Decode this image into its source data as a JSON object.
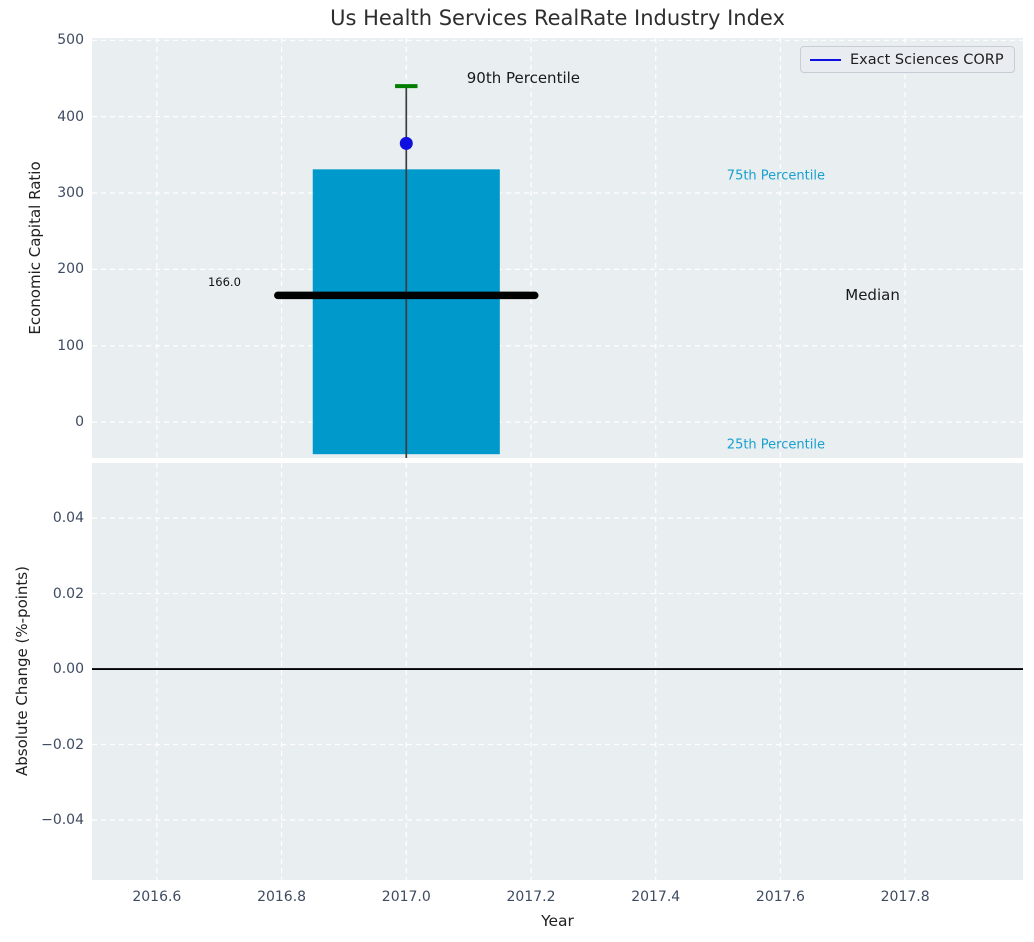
{
  "title": "Us Health Services RealRate Industry Index",
  "colors": {
    "axes_background": "#e9eef0",
    "grid": "#ffffff",
    "tick_text": "#3e4b61",
    "label_text": "#1f1f1f",
    "bar_fill": "#0099cc",
    "median_line": "#000000",
    "p90_cap": "#007d02",
    "whisker": "#3d3d3d",
    "company_blue": "#0f0fe0",
    "percentile_text": "#18a0d0",
    "zero_line": "#000000"
  },
  "legend": {
    "label": "Exact Sciences CORP",
    "line_color": "#0f0fe0"
  },
  "chart_data": [
    {
      "type": "box",
      "panel": "top",
      "ylabel": "Economic Capital Ratio",
      "xlim": [
        2016.496,
        2017.989
      ],
      "ylim": [
        -47,
        503
      ],
      "grid": true,
      "yticks": {
        "values": [
          0,
          100,
          200,
          300,
          400,
          500
        ],
        "labels": [
          "0",
          "100",
          "200",
          "300",
          "400",
          "500"
        ]
      },
      "xticks": {
        "values": [
          2016.6,
          2016.8,
          2017.0,
          2017.2,
          2017.4,
          2017.6,
          2017.8
        ],
        "labels": []
      },
      "box": {
        "x": 2017.0,
        "half_width": 0.15,
        "q25": -42,
        "q75": 331,
        "median": 166,
        "median_label": "166.0",
        "median_half_width": 0.206,
        "p90": 440,
        "p90_cap_half_width": 0.018,
        "whisker_low": -48
      },
      "company_point": {
        "x": 2017.0,
        "y": 365,
        "label": "Exact Sciences CORP"
      },
      "annotations": [
        {
          "text": "90th Percentile",
          "x": 2017.097,
          "y": 451,
          "size": 15,
          "color": "#1a1a1a"
        },
        {
          "text": "166.0",
          "x": 2016.682,
          "y": 183,
          "size": 11.5,
          "color": "#111111"
        },
        {
          "text": "Median",
          "x": 2017.704,
          "y": 167,
          "size": 15,
          "color": "#1a1a1a"
        },
        {
          "text": "75th Percentile",
          "x": 2017.514,
          "y": 322,
          "size": 13,
          "color": "#18a0d0"
        },
        {
          "text": "25th Percentile",
          "x": 2017.514,
          "y": -30,
          "size": 13,
          "color": "#18a0d0"
        }
      ]
    },
    {
      "type": "line",
      "panel": "bottom",
      "ylabel": "Absolute Change (%-points)",
      "xlabel": "Year",
      "xlim": [
        2016.496,
        2017.989
      ],
      "ylim": [
        -0.0559,
        0.0546
      ],
      "grid": true,
      "yticks": {
        "values": [
          0.04,
          0.02,
          0.0,
          -0.02,
          -0.04
        ],
        "labels": [
          "0.04",
          "0.02",
          "0.00",
          "−0.02",
          "−0.04"
        ]
      },
      "xticks": {
        "values": [
          2016.6,
          2016.8,
          2017.0,
          2017.2,
          2017.4,
          2017.6,
          2017.8
        ],
        "labels": [
          "2016.6",
          "2016.8",
          "2017.0",
          "2017.2",
          "2017.4",
          "2017.6",
          "2017.8"
        ]
      },
      "zero_line_y": 0.0,
      "series": []
    }
  ]
}
